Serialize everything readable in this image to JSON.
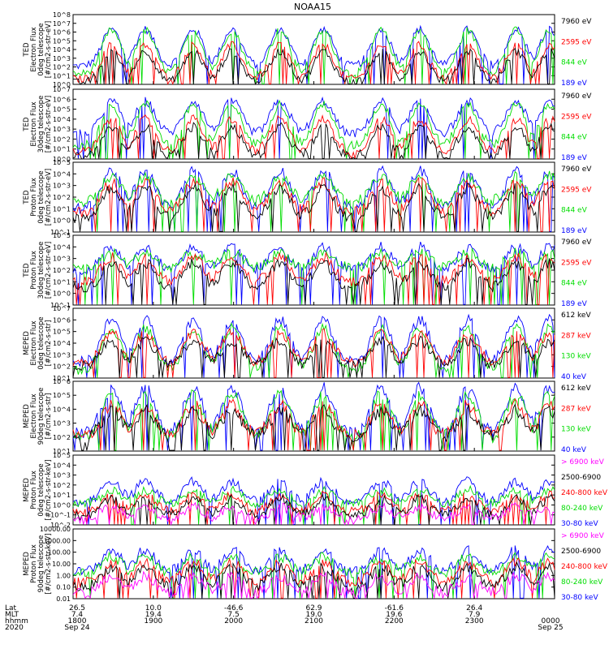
{
  "title": "NOAA15",
  "colors": {
    "blue": "#0000ff",
    "red": "#ff0000",
    "green": "#00dd00",
    "black": "#000000",
    "magenta": "#ff00ff"
  },
  "footer": {
    "row_labels": [
      "Lat",
      "MLT",
      "hhmm",
      "2020"
    ],
    "columns": [
      {
        "lat": "26.5",
        "mlt": "7.4",
        "hhmm": "1800",
        "date": "Sep 24"
      },
      {
        "lat": "10.0",
        "mlt": "19.4",
        "hhmm": "1900",
        "date": ""
      },
      {
        "lat": "-46.6",
        "mlt": "7.5",
        "hhmm": "2000",
        "date": ""
      },
      {
        "lat": "62.9",
        "mlt": "19.0",
        "hhmm": "2100",
        "date": ""
      },
      {
        "lat": "-61.6",
        "mlt": "19.6",
        "hhmm": "2200",
        "date": ""
      },
      {
        "lat": "26.4",
        "mlt": "7.9",
        "hhmm": "2300",
        "date": ""
      },
      {
        "lat": "",
        "mlt": "",
        "hhmm": "0000",
        "date": "Sep 25"
      }
    ]
  },
  "chart_data": [
    {
      "type": "line",
      "ylabel": [
        "TED",
        "Electron Flux",
        "0deg telescope",
        "[#/cm2-s-str-eV]"
      ],
      "ylog": true,
      "ylim_exp": [
        0,
        8
      ],
      "tick_labels": [
        "10^0",
        "10^1",
        "10^2",
        "10^3",
        "10^4",
        "10^5",
        "10^6",
        "10^7",
        "10^8"
      ],
      "legend": [
        {
          "name": "7960 eV",
          "color": "black"
        },
        {
          "name": "2595 eV",
          "color": "red"
        },
        {
          "name": "844 eV",
          "color": "green"
        },
        {
          "name": "189 eV",
          "color": "blue"
        }
      ],
      "series": [
        {
          "color": "blue",
          "base": 2.1,
          "peak": 6.3
        },
        {
          "color": "green",
          "base": 1.2,
          "peak": 6.2
        },
        {
          "color": "red",
          "base": 0.6,
          "peak": 4.5
        },
        {
          "color": "black",
          "base": 0.2,
          "peak": 3.8
        }
      ]
    },
    {
      "type": "line",
      "ylabel": [
        "TED",
        "Electron Flux",
        "30deg telescope",
        "[#/cm2-s-str-eV]"
      ],
      "ylog": true,
      "ylim_exp": [
        0,
        7
      ],
      "tick_labels": [
        "10^0",
        "10^1",
        "10^2",
        "10^3",
        "10^4",
        "10^5",
        "10^6",
        "10^7"
      ],
      "legend": [
        {
          "name": "7960 eV",
          "color": "black"
        },
        {
          "name": "2595 eV",
          "color": "red"
        },
        {
          "name": "844 eV",
          "color": "green"
        },
        {
          "name": "189 eV",
          "color": "blue"
        }
      ],
      "series": [
        {
          "color": "blue",
          "base": 2.5,
          "peak": 5.8
        },
        {
          "color": "green",
          "base": 1.3,
          "peak": 5.5
        },
        {
          "color": "red",
          "base": 0.7,
          "peak": 4.0
        },
        {
          "color": "black",
          "base": 0.2,
          "peak": 3.2
        }
      ]
    },
    {
      "type": "line",
      "ylabel": [
        "TED",
        "Proton Flux",
        "0deg telescope",
        "[#/cm2-s-str-eV]"
      ],
      "ylog": true,
      "ylim_exp": [
        -1,
        5
      ],
      "tick_labels": [
        "10^-1",
        "10^0",
        "10^1",
        "10^2",
        "10^3",
        "10^4",
        "10^5"
      ],
      "legend": [
        {
          "name": "7960 eV",
          "color": "black"
        },
        {
          "name": "2595 eV",
          "color": "red"
        },
        {
          "name": "844 eV",
          "color": "green"
        },
        {
          "name": "189 eV",
          "color": "blue"
        }
      ],
      "series": [
        {
          "color": "blue",
          "base": 1.0,
          "peak": 4.3
        },
        {
          "color": "green",
          "base": 1.6,
          "peak": 3.8
        },
        {
          "color": "red",
          "base": 0.7,
          "peak": 3.3
        },
        {
          "color": "black",
          "base": 0.2,
          "peak": 2.8
        }
      ]
    },
    {
      "type": "line",
      "ylabel": [
        "TED",
        "Proton Flux",
        "30deg telescope",
        "[#/cm2-s-str-eV]"
      ],
      "ylog": true,
      "ylim_exp": [
        -1,
        5
      ],
      "tick_labels": [
        "10^-1",
        "10^0",
        "10^1",
        "10^2",
        "10^3",
        "10^4",
        "10^5"
      ],
      "legend": [
        {
          "name": "7960 eV",
          "color": "black"
        },
        {
          "name": "2595 eV",
          "color": "red"
        },
        {
          "name": "844 eV",
          "color": "green"
        },
        {
          "name": "189 eV",
          "color": "blue"
        }
      ],
      "series": [
        {
          "color": "blue",
          "base": 2.0,
          "peak": 4.0
        },
        {
          "color": "green",
          "base": 2.2,
          "peak": 3.5
        },
        {
          "color": "red",
          "base": 1.0,
          "peak": 3.1
        },
        {
          "color": "black",
          "base": 0.5,
          "peak": 2.6
        }
      ]
    },
    {
      "type": "line",
      "ylabel": [
        "MEPED",
        "Electron Flux",
        "0deg telescope",
        "[#/cm2-s-str]"
      ],
      "ylog": true,
      "ylim_exp": [
        1,
        7
      ],
      "tick_labels": [
        "10^1",
        "10^2",
        "10^3",
        "10^4",
        "10^5",
        "10^6",
        "10^7"
      ],
      "legend": [
        {
          "name": "612 keV",
          "color": "black"
        },
        {
          "name": "287 keV",
          "color": "red"
        },
        {
          "name": "130 keV",
          "color": "green"
        },
        {
          "name": "40 keV",
          "color": "blue"
        }
      ],
      "series": [
        {
          "color": "blue",
          "base": 2.4,
          "peak": 6.0
        },
        {
          "color": "green",
          "base": 1.7,
          "peak": 5.3
        },
        {
          "color": "red",
          "base": 2.3,
          "peak": 4.9
        },
        {
          "color": "black",
          "base": 2.1,
          "peak": 4.2
        }
      ]
    },
    {
      "type": "line",
      "ylabel": [
        "MEPED",
        "Electron Flux",
        "90deg telescope",
        "[#/cm2-s-str]"
      ],
      "ylog": true,
      "ylim_exp": [
        1,
        6
      ],
      "tick_labels": [
        "10^1",
        "10^2",
        "10^3",
        "10^4",
        "10^5",
        "10^6"
      ],
      "legend": [
        {
          "name": "612 keV",
          "color": "black"
        },
        {
          "name": "287 keV",
          "color": "red"
        },
        {
          "name": "130 keV",
          "color": "green"
        },
        {
          "name": "40 keV",
          "color": "blue"
        }
      ],
      "series": [
        {
          "color": "blue",
          "base": 2.3,
          "peak": 5.5
        },
        {
          "color": "green",
          "base": 1.9,
          "peak": 5.1
        },
        {
          "color": "red",
          "base": 2.1,
          "peak": 4.3
        },
        {
          "color": "black",
          "base": 2.0,
          "peak": 3.9
        }
      ]
    },
    {
      "type": "line",
      "ylabel": [
        "MEPED",
        "Proton Flux",
        "0deg telescope",
        "[#/cm2-s-str-keV]"
      ],
      "ylog": true,
      "ylim_exp": [
        -2,
        5
      ],
      "tick_labels": [
        "10^-2",
        "10^-1",
        "10^0",
        "10^1",
        "10^2",
        "10^3",
        "10^4",
        "10^5"
      ],
      "legend": [
        {
          "name": "> 6900 keV",
          "color": "magenta"
        },
        {
          "name": "2500-6900",
          "color": "black"
        },
        {
          "name": "240-800 keV",
          "color": "red"
        },
        {
          "name": "80-240 keV",
          "color": "green"
        },
        {
          "name": "30-80 keV",
          "color": "blue"
        }
      ],
      "series": [
        {
          "color": "blue",
          "base": 0.3,
          "peak": 2.4
        },
        {
          "color": "green",
          "base": 0.1,
          "peak": 1.5
        },
        {
          "color": "red",
          "base": -0.7,
          "peak": 1.0
        },
        {
          "color": "black",
          "base": -1.1,
          "peak": 0.6
        },
        {
          "color": "magenta",
          "base": -1.4,
          "peak": -0.2
        }
      ]
    },
    {
      "type": "line",
      "ylabel": [
        "MEPED",
        "Proton Flux",
        "90deg telescope",
        "[#/cm2-s-str-keV]"
      ],
      "ylog": true,
      "ylim_exp": [
        -2,
        4
      ],
      "tick_labels": [
        "0.01",
        "0.10",
        "1.00",
        "10.00",
        "100.00",
        "1000.00",
        "10000.00"
      ],
      "legend": [
        {
          "name": "> 6900 keV",
          "color": "magenta"
        },
        {
          "name": "2500-6900",
          "color": "black"
        },
        {
          "name": "240-800 keV",
          "color": "red"
        },
        {
          "name": "80-240 keV",
          "color": "green"
        },
        {
          "name": "30-80 keV",
          "color": "blue"
        }
      ],
      "series": [
        {
          "color": "blue",
          "base": 0.3,
          "peak": 2.2
        },
        {
          "color": "green",
          "base": 0.2,
          "peak": 1.6
        },
        {
          "color": "red",
          "base": -0.6,
          "peak": 1.1
        },
        {
          "color": "black",
          "base": -1.0,
          "peak": 0.7
        },
        {
          "color": "magenta",
          "base": -1.5,
          "peak": -0.1
        }
      ]
    }
  ]
}
